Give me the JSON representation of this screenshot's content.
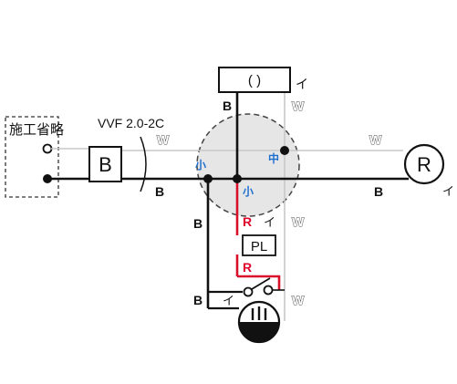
{
  "labels": {
    "omit_note": "施工省略",
    "cable_spec": "VVF 2.0-2C",
    "breaker": "B",
    "light_top_parens": "(  )",
    "light_top_symbol": "イ",
    "motor_symbol": "R",
    "motor_side_symbol": "イ",
    "pilot_lamp": "PL",
    "pilot_symbol": "イ",
    "switch_symbol": "イ",
    "small_left": "小",
    "small_center": "小",
    "middle": "中"
  },
  "wire_labels": {
    "black_top": "B",
    "white_top": "W",
    "white_cable": "W",
    "white_right": "W",
    "black_left": "B",
    "black_right": "B",
    "black_vertical_upper": "B",
    "black_vertical_lower": "B",
    "red_upper": "R",
    "red_lower": "R",
    "white_pl": "W",
    "white_lower": "W"
  },
  "colors": {
    "black_wire": "#111111",
    "white_wire": "#c8c8c8",
    "red_wire": "#d8102a",
    "blue_text": "#1f6fd1",
    "joint_circle_fill": "#e6e6e6"
  }
}
